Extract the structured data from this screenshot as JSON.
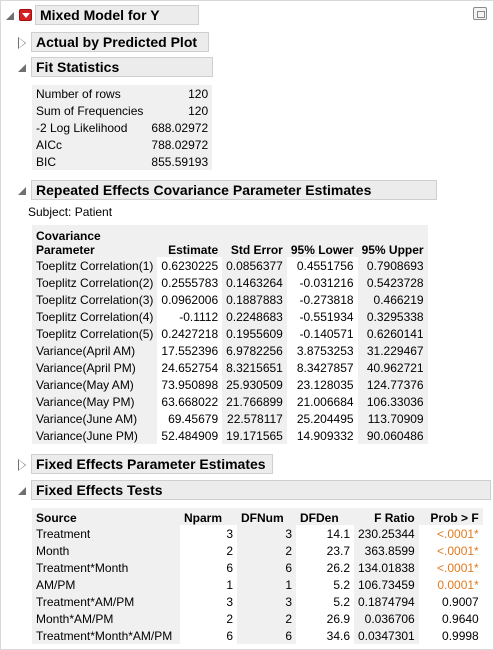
{
  "title": "Mixed Model for Y",
  "sections": {
    "actual_by_predicted": "Actual by Predicted Plot",
    "fit_statistics": "Fit Statistics",
    "repeated_effects": "Repeated Effects Covariance Parameter Estimates",
    "fixed_params": "Fixed Effects Parameter Estimates",
    "fixed_tests": "Fixed Effects Tests"
  },
  "fit_stats": [
    {
      "label": "Number of rows",
      "value": "120"
    },
    {
      "label": "Sum of Frequencies",
      "value": "120"
    },
    {
      "label": "-2 Log Likelihood",
      "value": "688.02972"
    },
    {
      "label": "AICc",
      "value": "788.02972"
    },
    {
      "label": "BIC",
      "value": "855.59193"
    }
  ],
  "subject": "Subject: Patient",
  "cov_headers": {
    "param1": "Covariance",
    "param2": "Parameter",
    "estimate": "Estimate",
    "stderr": "Std Error",
    "lower": "95% Lower",
    "upper": "95% Upper"
  },
  "cov_rows": [
    {
      "param": "Toeplitz Correlation(1)",
      "estimate": "0.6230225",
      "stderr": "0.0856377",
      "lower": "0.4551756",
      "upper": "0.7908693"
    },
    {
      "param": "Toeplitz Correlation(2)",
      "estimate": "0.2555783",
      "stderr": "0.1463264",
      "lower": "-0.031216",
      "upper": "0.5423728"
    },
    {
      "param": "Toeplitz Correlation(3)",
      "estimate": "0.0962006",
      "stderr": "0.1887883",
      "lower": "-0.273818",
      "upper": "0.466219"
    },
    {
      "param": "Toeplitz Correlation(4)",
      "estimate": "-0.1112",
      "stderr": "0.2248683",
      "lower": "-0.551934",
      "upper": "0.3295338"
    },
    {
      "param": "Toeplitz Correlation(5)",
      "estimate": "0.2427218",
      "stderr": "0.1955609",
      "lower": "-0.140571",
      "upper": "0.6260141"
    },
    {
      "param": "Variance(April AM)",
      "estimate": "17.552396",
      "stderr": "6.9782256",
      "lower": "3.8753253",
      "upper": "31.229467"
    },
    {
      "param": "Variance(April PM)",
      "estimate": "24.652754",
      "stderr": "8.3215651",
      "lower": "8.3427857",
      "upper": "40.962721"
    },
    {
      "param": "Variance(May AM)",
      "estimate": "73.950898",
      "stderr": "25.930509",
      "lower": "23.128035",
      "upper": "124.77376"
    },
    {
      "param": "Variance(May PM)",
      "estimate": "63.668022",
      "stderr": "21.766899",
      "lower": "21.006684",
      "upper": "106.33036"
    },
    {
      "param": "Variance(June AM)",
      "estimate": "69.45679",
      "stderr": "22.578117",
      "lower": "25.204495",
      "upper": "113.70909"
    },
    {
      "param": "Variance(June PM)",
      "estimate": "52.484909",
      "stderr": "19.171565",
      "lower": "14.909332",
      "upper": "90.060486"
    }
  ],
  "test_headers": {
    "source": "Source",
    "nparm": "Nparm",
    "dfnum": "DFNum",
    "dfden": "DFDen",
    "fratio": "F Ratio",
    "prob": "Prob > F"
  },
  "test_rows": [
    {
      "source": "Treatment",
      "nparm": "3",
      "dfnum": "3",
      "dfden": "14.1",
      "fratio": "230.25344",
      "prob": "<.0001*",
      "sig": true
    },
    {
      "source": "Month",
      "nparm": "2",
      "dfnum": "2",
      "dfden": "23.7",
      "fratio": "363.8599",
      "prob": "<.0001*",
      "sig": true
    },
    {
      "source": "Treatment*Month",
      "nparm": "6",
      "dfnum": "6",
      "dfden": "26.2",
      "fratio": "134.01838",
      "prob": "<.0001*",
      "sig": true
    },
    {
      "source": "AM/PM",
      "nparm": "1",
      "dfnum": "1",
      "dfden": "5.2",
      "fratio": "106.73459",
      "prob": "0.0001*",
      "sig": true
    },
    {
      "source": "Treatment*AM/PM",
      "nparm": "3",
      "dfnum": "3",
      "dfden": "5.2",
      "fratio": "0.1874794",
      "prob": "0.9007",
      "sig": false
    },
    {
      "source": "Month*AM/PM",
      "nparm": "2",
      "dfnum": "2",
      "dfden": "26.9",
      "fratio": "0.036706",
      "prob": "0.9640",
      "sig": false
    },
    {
      "source": "Treatment*Month*AM/PM",
      "nparm": "6",
      "dfnum": "6",
      "dfden": "34.6",
      "fratio": "0.0347301",
      "prob": "0.9998",
      "sig": false
    }
  ],
  "colors": {
    "significant": "#e07a1f",
    "header_bg": "#ececec",
    "red_button": "#d42020"
  }
}
